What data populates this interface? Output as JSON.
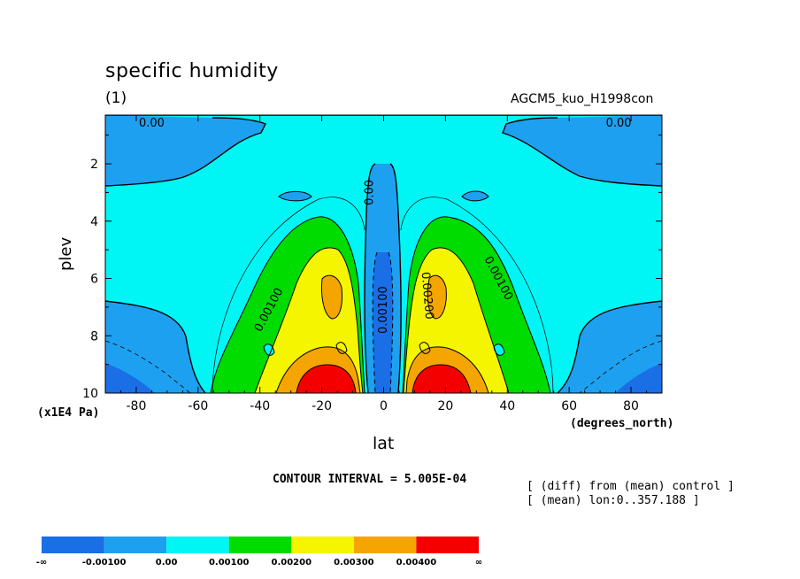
{
  "chart_data": {
    "type": "contour",
    "title": "specific humidity",
    "subtitle": "(1)",
    "case_name": "AGCM5_kuo_H1998con",
    "xlabel": "lat",
    "ylabel": "plev",
    "x_units": "(degrees_north)",
    "y_units": "(x1E4 Pa)",
    "xlim": [
      -90,
      90
    ],
    "ylim": [
      0.3,
      10
    ],
    "y_inverted": true,
    "x_ticks": [
      -80,
      -60,
      -40,
      -20,
      0,
      20,
      40,
      60,
      80
    ],
    "x_tick_labels": [
      "-80",
      "-60",
      "-40",
      "-20",
      "0",
      "20",
      "40",
      "60",
      "80"
    ],
    "y_ticks": [
      2,
      4,
      6,
      8,
      10
    ],
    "y_tick_labels": [
      "2",
      "4",
      "6",
      "8",
      "10"
    ],
    "contour_interval_text": "CONTOUR INTERVAL = 5.005E-04",
    "notes": [
      "[ (diff) from (mean) control ]",
      "[ (mean) lon:0..357.188 ]"
    ],
    "levels": [
      "-∞",
      "-0.00100",
      "0.00",
      "0.00100",
      "0.00200",
      "0.00300",
      "0.00400",
      "∞"
    ],
    "level_colors": [
      "#1a6ee6",
      "#1ea0f0",
      "#00f5f5",
      "#00dc00",
      "#f5f500",
      "#f5a500",
      "#f50000"
    ],
    "contour_labels": [
      {
        "text": "0.00",
        "lat": -75,
        "plev": 0.6,
        "angle": 0
      },
      {
        "text": "0.00",
        "lat": 76,
        "plev": 0.6,
        "angle": 0
      },
      {
        "text": "0.00",
        "lat": -4.5,
        "plev": 3.0,
        "angle": -90
      },
      {
        "text": "0.00100",
        "lat": 0,
        "plev": 7.1,
        "angle": -90
      },
      {
        "text": "0.00100",
        "lat": -37,
        "plev": 7.1,
        "angle": -62
      },
      {
        "text": "0.00100",
        "lat": 37,
        "plev": 6.0,
        "angle": 62
      },
      {
        "text": "0.00200",
        "lat": 14,
        "plev": 6.6,
        "angle": 85
      }
    ]
  }
}
